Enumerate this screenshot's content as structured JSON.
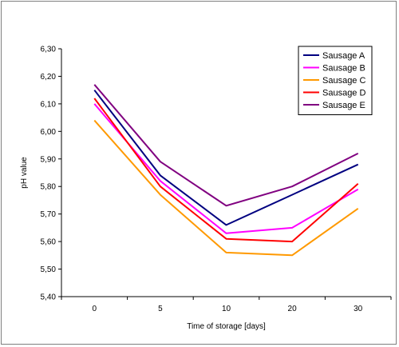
{
  "chart_data": {
    "type": "line",
    "title": "",
    "xlabel": "Time of storage [days]",
    "ylabel": "pH value",
    "categories": [
      "0",
      "5",
      "10",
      "20",
      "30"
    ],
    "ylim": [
      5.4,
      6.3
    ],
    "yticks": [
      "5,40",
      "5,50",
      "5,60",
      "5,70",
      "5,80",
      "5,90",
      "6,00",
      "6,10",
      "6,20",
      "6,30"
    ],
    "grid": false,
    "legend_position": "top-right",
    "series": [
      {
        "name": "Sausage A",
        "color": "#000080",
        "values": [
          6.15,
          5.84,
          5.66,
          5.77,
          5.88
        ]
      },
      {
        "name": "Sausage B",
        "color": "#ff00ff",
        "values": [
          6.1,
          5.82,
          5.63,
          5.65,
          5.79
        ]
      },
      {
        "name": "Sausage C",
        "color": "#ff9900",
        "values": [
          6.04,
          5.77,
          5.56,
          5.55,
          5.72
        ]
      },
      {
        "name": "Sausage D",
        "color": "#ff0000",
        "values": [
          6.12,
          5.8,
          5.61,
          5.6,
          5.81
        ]
      },
      {
        "name": "Sausage E",
        "color": "#800080",
        "values": [
          6.17,
          5.89,
          5.73,
          5.8,
          5.92
        ]
      }
    ]
  }
}
